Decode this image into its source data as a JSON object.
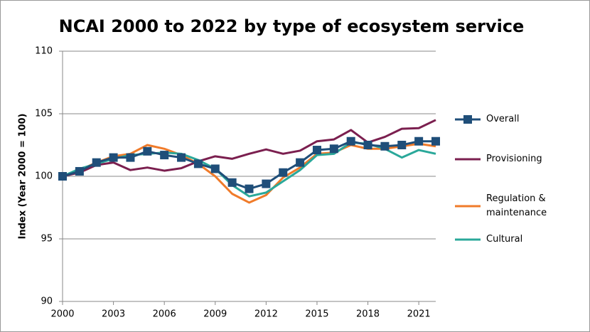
{
  "chart_data": {
    "type": "line",
    "title": "NCAI 2000 to 2022 by type of ecosystem service",
    "y_label": "Index (Year 2000 = 100)",
    "x": [
      2000,
      2001,
      2002,
      2003,
      2004,
      2005,
      2006,
      2007,
      2008,
      2009,
      2010,
      2011,
      2012,
      2013,
      2014,
      2015,
      2016,
      2017,
      2018,
      2019,
      2020,
      2021,
      2022
    ],
    "xlim": [
      2000,
      2022
    ],
    "xticks": [
      2000,
      2003,
      2006,
      2009,
      2012,
      2015,
      2018,
      2021
    ],
    "ylim": [
      90,
      110
    ],
    "yticks": [
      90,
      95,
      100,
      105,
      110
    ],
    "grid": true,
    "series": [
      {
        "name": "Overall",
        "color": "#1f4e79",
        "marker": "square",
        "values": [
          100,
          100.4,
          101.1,
          101.5,
          101.5,
          102.0,
          101.7,
          101.5,
          101.0,
          100.6,
          99.5,
          99.0,
          99.4,
          100.3,
          101.1,
          102.1,
          102.2,
          102.8,
          102.5,
          102.4,
          102.5,
          102.8,
          102.8
        ]
      },
      {
        "name": "Provisioning",
        "color": "#7b1f4f",
        "values": [
          100,
          100.3,
          100.9,
          101.1,
          100.5,
          100.7,
          100.45,
          100.65,
          101.2,
          101.6,
          101.4,
          101.8,
          102.15,
          101.8,
          102.05,
          102.8,
          102.95,
          103.7,
          102.7,
          103.15,
          103.8,
          103.85,
          104.5
        ]
      },
      {
        "name": "Regulation & maintenance",
        "color": "#f07b2a",
        "values": [
          100,
          100.5,
          101.1,
          101.6,
          101.8,
          102.5,
          102.2,
          101.7,
          101.0,
          100.0,
          98.6,
          97.9,
          98.5,
          99.9,
          100.7,
          101.8,
          101.9,
          102.5,
          102.2,
          102.2,
          102.4,
          102.6,
          102.4
        ]
      },
      {
        "name": "Cultural",
        "color": "#2aa89a",
        "values": [
          100,
          100.6,
          101.0,
          101.4,
          101.7,
          101.8,
          101.9,
          101.8,
          101.3,
          100.6,
          99.3,
          98.4,
          98.7,
          99.6,
          100.5,
          101.7,
          101.8,
          102.7,
          102.6,
          102.2,
          101.5,
          102.1,
          101.8
        ]
      }
    ]
  }
}
